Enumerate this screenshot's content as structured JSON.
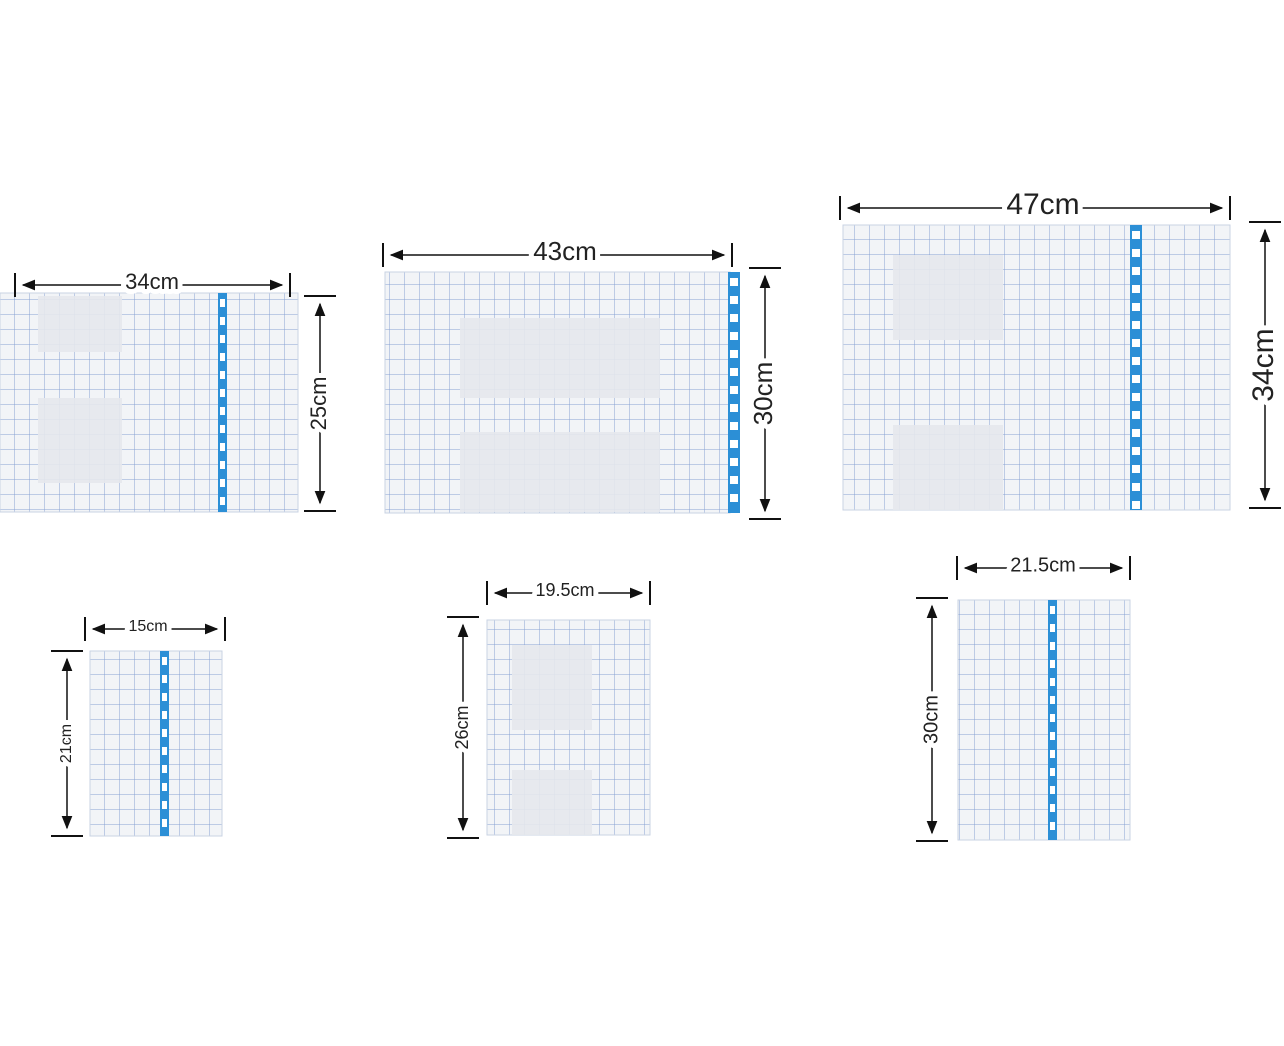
{
  "sheets": [
    {
      "width": "34cm",
      "height": "25cm"
    },
    {
      "width": "43cm",
      "height": "30cm"
    },
    {
      "width": "47cm",
      "height": "34cm"
    },
    {
      "width": "15cm",
      "height": "21cm"
    },
    {
      "width": "19.5cm",
      "height": "26cm"
    },
    {
      "width": "21.5cm",
      "height": "30cm"
    }
  ]
}
